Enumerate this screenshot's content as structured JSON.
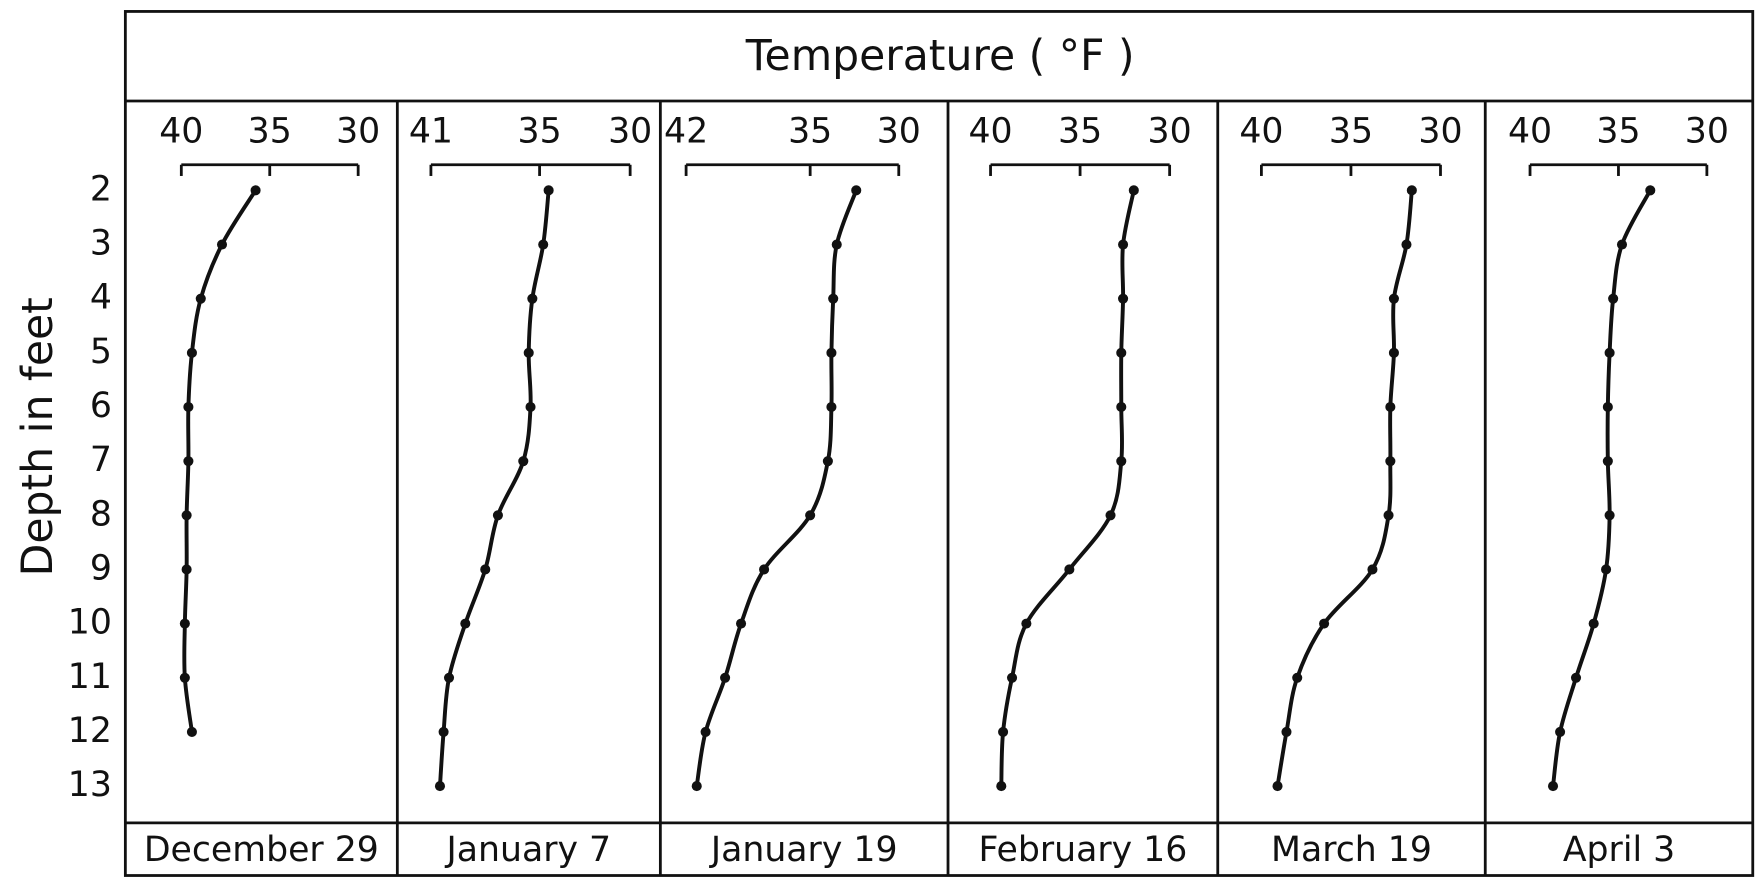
{
  "title": "Temperature ( °F )",
  "ylabel": "Depth in feet",
  "ylim": [
    0.35,
    13.68
  ],
  "yinvert": true,
  "yticks": [
    2,
    3,
    4,
    5,
    6,
    7,
    8,
    9,
    10,
    11,
    12,
    13
  ],
  "chart_data": [
    {
      "type": "line",
      "label": "December 29",
      "color": "#111111",
      "xlim": [
        40,
        30
      ],
      "xticks": [
        40,
        35,
        30
      ],
      "x": [
        35.8,
        37.7,
        38.9,
        39.4,
        39.6,
        39.6,
        39.7,
        39.7,
        39.8,
        39.8,
        39.4
      ],
      "y": [
        2,
        3,
        4,
        5,
        6,
        7,
        8,
        9,
        10,
        11,
        12
      ]
    },
    {
      "type": "line",
      "label": "January 7",
      "color": "#111111",
      "xlim": [
        41,
        30
      ],
      "xticks": [
        41,
        35,
        30
      ],
      "x": [
        34.5,
        34.8,
        35.4,
        35.6,
        35.5,
        35.9,
        37.3,
        38.0,
        39.1,
        40.0,
        40.3,
        40.5
      ],
      "y": [
        2,
        3,
        4,
        5,
        6,
        7,
        8,
        9,
        10,
        11,
        12,
        13
      ]
    },
    {
      "type": "line",
      "label": "January 19",
      "color": "#111111",
      "xlim": [
        42,
        30
      ],
      "xticks": [
        42,
        35,
        30
      ],
      "x": [
        32.4,
        33.5,
        33.7,
        33.8,
        33.8,
        34.0,
        35.0,
        37.6,
        38.9,
        39.8,
        40.9,
        41.4
      ],
      "y": [
        2,
        3,
        4,
        5,
        6,
        7,
        8,
        9,
        10,
        11,
        12,
        13
      ]
    },
    {
      "type": "line",
      "label": "February 16",
      "color": "#111111",
      "xlim": [
        40,
        30
      ],
      "xticks": [
        40,
        35,
        30
      ],
      "x": [
        32.0,
        32.6,
        32.6,
        32.7,
        32.7,
        32.7,
        33.3,
        35.6,
        38.0,
        38.8,
        39.3,
        39.4
      ],
      "y": [
        2,
        3,
        4,
        5,
        6,
        7,
        8,
        9,
        10,
        11,
        12,
        13
      ]
    },
    {
      "type": "line",
      "label": "March 19",
      "color": "#111111",
      "xlim": [
        40,
        30
      ],
      "xticks": [
        40,
        35,
        30
      ],
      "x": [
        31.6,
        31.9,
        32.6,
        32.6,
        32.8,
        32.8,
        32.9,
        33.8,
        36.5,
        38.0,
        38.6,
        39.1
      ],
      "y": [
        2,
        3,
        4,
        5,
        6,
        7,
        8,
        9,
        10,
        11,
        12,
        13
      ]
    },
    {
      "type": "line",
      "label": "April 3",
      "color": "#111111",
      "xlim": [
        40,
        30
      ],
      "xticks": [
        40,
        35,
        30
      ],
      "x": [
        33.2,
        34.8,
        35.3,
        35.5,
        35.6,
        35.6,
        35.5,
        35.7,
        36.4,
        37.4,
        38.3,
        38.7
      ],
      "y": [
        2,
        3,
        4,
        5,
        6,
        7,
        8,
        9,
        10,
        11,
        12,
        13
      ]
    }
  ]
}
